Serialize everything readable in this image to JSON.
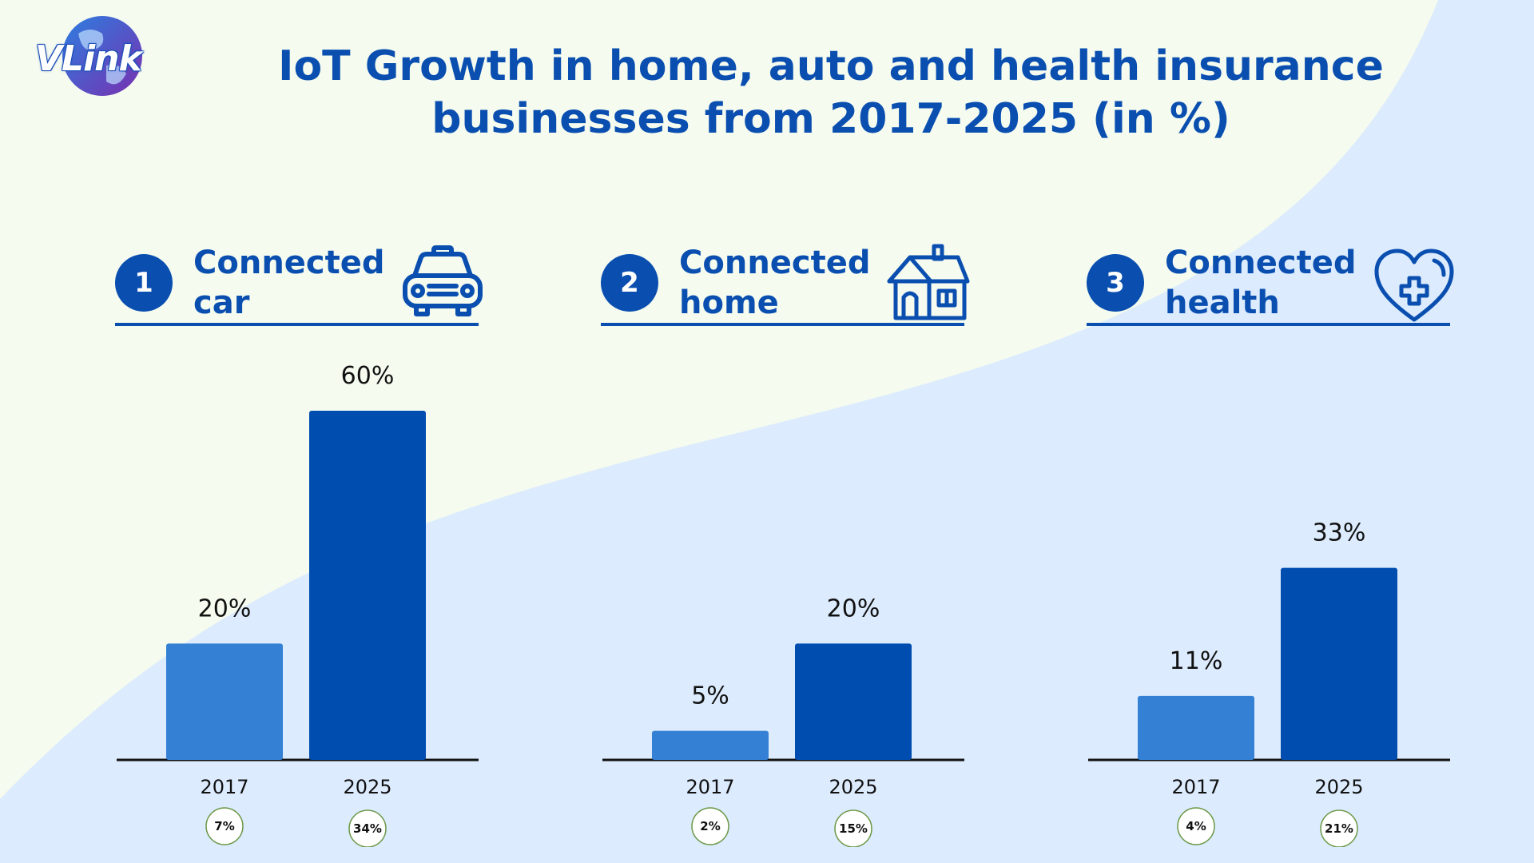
{
  "header": {
    "logo_text": "VLink",
    "title_line1": "IoT Growth in home, auto and health insurance",
    "title_line2": "businesses from 2017-2025 (in %)"
  },
  "colors": {
    "accent": "#0a4fb0",
    "bar_2017": "#3380d4",
    "bar_2025": "#004db0",
    "background_light": "#f5fbef",
    "background_blue": "#dcebfd"
  },
  "panels": [
    {
      "number": "1",
      "title_line1": "Connected",
      "title_line2": "car",
      "icon": "car-icon"
    },
    {
      "number": "2",
      "title_line1": "Connected",
      "title_line2": "home",
      "icon": "house-icon"
    },
    {
      "number": "3",
      "title_line1": "Connected",
      "title_line2": "health",
      "icon": "heart-plus-icon"
    }
  ],
  "chart_data": [
    {
      "type": "bar",
      "title": "Connected car",
      "categories": [
        "2017",
        "2025"
      ],
      "values": [
        20,
        60
      ],
      "value_labels": [
        "20%",
        "60%"
      ],
      "badges": [
        "7%",
        "34%"
      ],
      "ylim": [
        0,
        60
      ]
    },
    {
      "type": "bar",
      "title": "Connected home",
      "categories": [
        "2017",
        "2025"
      ],
      "values": [
        5,
        20
      ],
      "value_labels": [
        "5%",
        "20%"
      ],
      "badges": [
        "2%",
        "15%"
      ],
      "ylim": [
        0,
        60
      ]
    },
    {
      "type": "bar",
      "title": "Connected health",
      "categories": [
        "2017",
        "2025"
      ],
      "values": [
        11,
        33
      ],
      "value_labels": [
        "11%",
        "33%"
      ],
      "badges": [
        "4%",
        "21%"
      ],
      "ylim": [
        0,
        60
      ]
    }
  ]
}
